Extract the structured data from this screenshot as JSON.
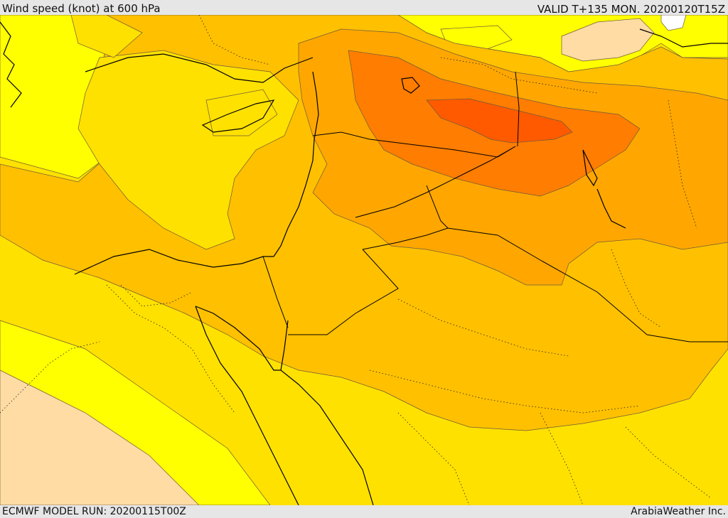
{
  "header": {
    "title": "Wind speed (knot) at 600 hPa",
    "valid": "VALID T+135 MON. 20200120T15Z"
  },
  "footer": {
    "model_run": "ECMWF MODEL RUN: 20200115T00Z",
    "credit": "ArabiaWeather Inc."
  },
  "map": {
    "variable": "wind speed",
    "unit": "knot",
    "level": "600 hPa",
    "color_bands": {
      "calm": "#ffffff",
      "light": "#ffdca3",
      "low": "#ffff00",
      "moderate": "#ffe100",
      "elevated": "#ffc000",
      "strong": "#ffa700",
      "very_strong": "#ff7d00",
      "max": "#ff5a00"
    },
    "land_border_color": "#000000",
    "contour_line_color": "#6e5a3c"
  }
}
